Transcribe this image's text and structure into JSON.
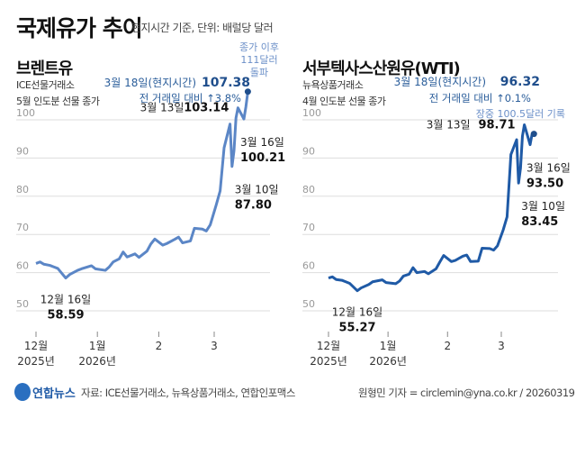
{
  "header": {
    "title": "국제유가 추이",
    "subtitle": "현지시간 기준, 단위: 배럴당 달러"
  },
  "chart_data": [
    {
      "type": "line",
      "title": "브렌트유",
      "desc1": "ICE선물거래소",
      "desc2": "5월 인도분 선물 종가",
      "color": "#5b86c6",
      "yticks": [
        100,
        90,
        80,
        70,
        60,
        50
      ],
      "ylim": [
        50,
        110
      ],
      "xticks": [
        {
          "date": "2025-12-01",
          "l1": "12월",
          "l2": "2025년"
        },
        {
          "date": "2026-01-01",
          "l1": "1월",
          "l2": "2026년"
        },
        {
          "date": "2026-02-01",
          "l1": "2",
          "l2": ""
        },
        {
          "date": "2026-03-01",
          "l1": "3",
          "l2": ""
        }
      ],
      "x": [
        "2025-12-01",
        "2025-12-03",
        "2025-12-05",
        "2025-12-08",
        "2025-12-10",
        "2025-12-12",
        "2025-12-16",
        "2025-12-18",
        "2025-12-22",
        "2025-12-24",
        "2025-12-29",
        "2025-12-31",
        "2026-01-05",
        "2026-01-07",
        "2026-01-09",
        "2026-01-12",
        "2026-01-14",
        "2026-01-16",
        "2026-01-20",
        "2026-01-22",
        "2026-01-26",
        "2026-01-28",
        "2026-01-30",
        "2026-02-03",
        "2026-02-05",
        "2026-02-09",
        "2026-02-11",
        "2026-02-13",
        "2026-02-17",
        "2026-02-19",
        "2026-02-23",
        "2026-02-25",
        "2026-02-27",
        "2026-03-02",
        "2026-03-04",
        "2026-03-06",
        "2026-03-09",
        "2026-03-10",
        "2026-03-11",
        "2026-03-12",
        "2026-03-13",
        "2026-03-16",
        "2026-03-17",
        "2026-03-18"
      ],
      "y": [
        62.4,
        62.8,
        62.2,
        61.9,
        61.5,
        61.1,
        58.59,
        59.5,
        60.6,
        61.0,
        61.8,
        61.0,
        60.6,
        61.5,
        62.8,
        63.6,
        65.4,
        64.1,
        64.9,
        64.0,
        65.6,
        67.5,
        68.8,
        67.2,
        67.6,
        68.7,
        69.3,
        67.8,
        68.3,
        71.6,
        71.4,
        70.9,
        72.5,
        77.7,
        81.4,
        92.7,
        98.9,
        87.8,
        91.9,
        100.5,
        103.14,
        100.21,
        103.4,
        107.38
      ],
      "annotations": {
        "low_date": "12월 16일",
        "low_val": "58.59",
        "d10": "3월 10일",
        "v10": "87.80",
        "d13": "3월 13일",
        "v13": "103.14",
        "d16": "3월 16일",
        "v16": "100.21",
        "d18": "3월 18일(현지시간)",
        "v18": "107.38",
        "chg": "전 거래일 대비 ↑3.8%",
        "note1": "종가 이후",
        "note2": "111달러",
        "note3": "돌파"
      }
    },
    {
      "type": "line",
      "title": "서부텍사스산원유(WTI)",
      "desc1": "뉴욕상품거래소",
      "desc2": "4월 인도분 선물 종가",
      "color": "#1f5aa6",
      "yticks": [
        100,
        90,
        80,
        70,
        60,
        50
      ],
      "ylim": [
        50,
        110
      ],
      "xticks": [
        {
          "date": "2025-12-01",
          "l1": "12월",
          "l2": "2025년"
        },
        {
          "date": "2026-01-01",
          "l1": "1월",
          "l2": "2026년"
        },
        {
          "date": "2026-02-01",
          "l1": "2",
          "l2": ""
        },
        {
          "date": "2026-03-01",
          "l1": "3",
          "l2": ""
        }
      ],
      "x": [
        "2025-12-01",
        "2025-12-03",
        "2025-12-05",
        "2025-12-08",
        "2025-12-10",
        "2025-12-12",
        "2025-12-16",
        "2025-12-18",
        "2025-12-22",
        "2025-12-24",
        "2025-12-29",
        "2025-12-31",
        "2026-01-05",
        "2026-01-07",
        "2026-01-09",
        "2026-01-12",
        "2026-01-14",
        "2026-01-16",
        "2026-01-20",
        "2026-01-22",
        "2026-01-26",
        "2026-01-28",
        "2026-01-30",
        "2026-02-03",
        "2026-02-05",
        "2026-02-09",
        "2026-02-11",
        "2026-02-13",
        "2026-02-17",
        "2026-02-19",
        "2026-02-23",
        "2026-02-25",
        "2026-02-27",
        "2026-03-02",
        "2026-03-04",
        "2026-03-06",
        "2026-03-09",
        "2026-03-10",
        "2026-03-11",
        "2026-03-12",
        "2026-03-13",
        "2026-03-16",
        "2026-03-17",
        "2026-03-18"
      ],
      "y": [
        58.6,
        58.9,
        58.2,
        58.0,
        57.6,
        57.2,
        55.27,
        56.0,
        56.9,
        57.6,
        58.1,
        57.4,
        57.1,
        57.8,
        59.1,
        59.6,
        61.3,
        60.0,
        60.3,
        59.7,
        61.0,
        62.8,
        64.5,
        62.9,
        63.2,
        64.3,
        64.6,
        62.9,
        63.0,
        66.4,
        66.3,
        65.9,
        67.0,
        71.2,
        74.6,
        90.9,
        94.8,
        83.45,
        87.3,
        95.7,
        98.71,
        93.5,
        96.2,
        96.32
      ],
      "annotations": {
        "low_date": "12월 16일",
        "low_val": "55.27",
        "d10": "3월 10일",
        "v10": "83.45",
        "d13": "3월 13일",
        "v13": "98.71",
        "d16": "3월 16일",
        "v16": "93.50",
        "d18": "3월 18일(현지시간)",
        "v18": "96.32",
        "chg": "전 거래일 대비 ↑0.1%",
        "note1": "장중 100.5달러 기록"
      }
    }
  ],
  "footer": {
    "logo": "연합뉴스",
    "source": "자료: ICE선물거래소, 뉴욕상품거래소, 연합인포맥스",
    "credit": "원형민 기자 = circlemin@yna.co.kr / 20260319"
  }
}
